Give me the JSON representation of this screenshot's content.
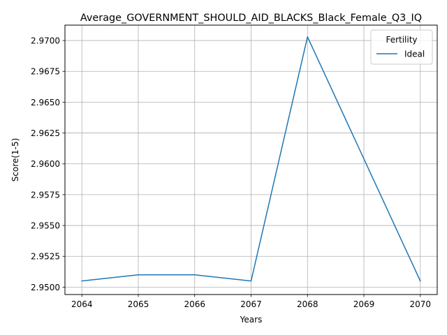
{
  "chart_data": {
    "type": "line",
    "title": "Average_GOVERNMENT_SHOULD_AID_BLACKS_Black_Female_Q3_IQ",
    "xlabel": "Years",
    "ylabel": "Score(1-5)",
    "x": [
      2064,
      2065,
      2066,
      2067,
      2068,
      2069,
      2070
    ],
    "xlim": [
      2063.7,
      2070.3
    ],
    "ylim": [
      2.9494,
      2.97125
    ],
    "xticks": [
      "2064",
      "2065",
      "2066",
      "2067",
      "2068",
      "2069",
      "2070"
    ],
    "yticks": [
      "2.9500",
      "2.9525",
      "2.9550",
      "2.9575",
      "2.9600",
      "2.9625",
      "2.9650",
      "2.9675",
      "2.9700"
    ],
    "grid": true,
    "legend": {
      "title": "Fertility",
      "placement": "top-right"
    },
    "series": [
      {
        "name": "Ideal",
        "color": "#1f77b4",
        "values": [
          2.9505,
          2.951,
          2.951,
          2.9505,
          2.9703,
          2.9604,
          2.9505
        ]
      }
    ]
  }
}
